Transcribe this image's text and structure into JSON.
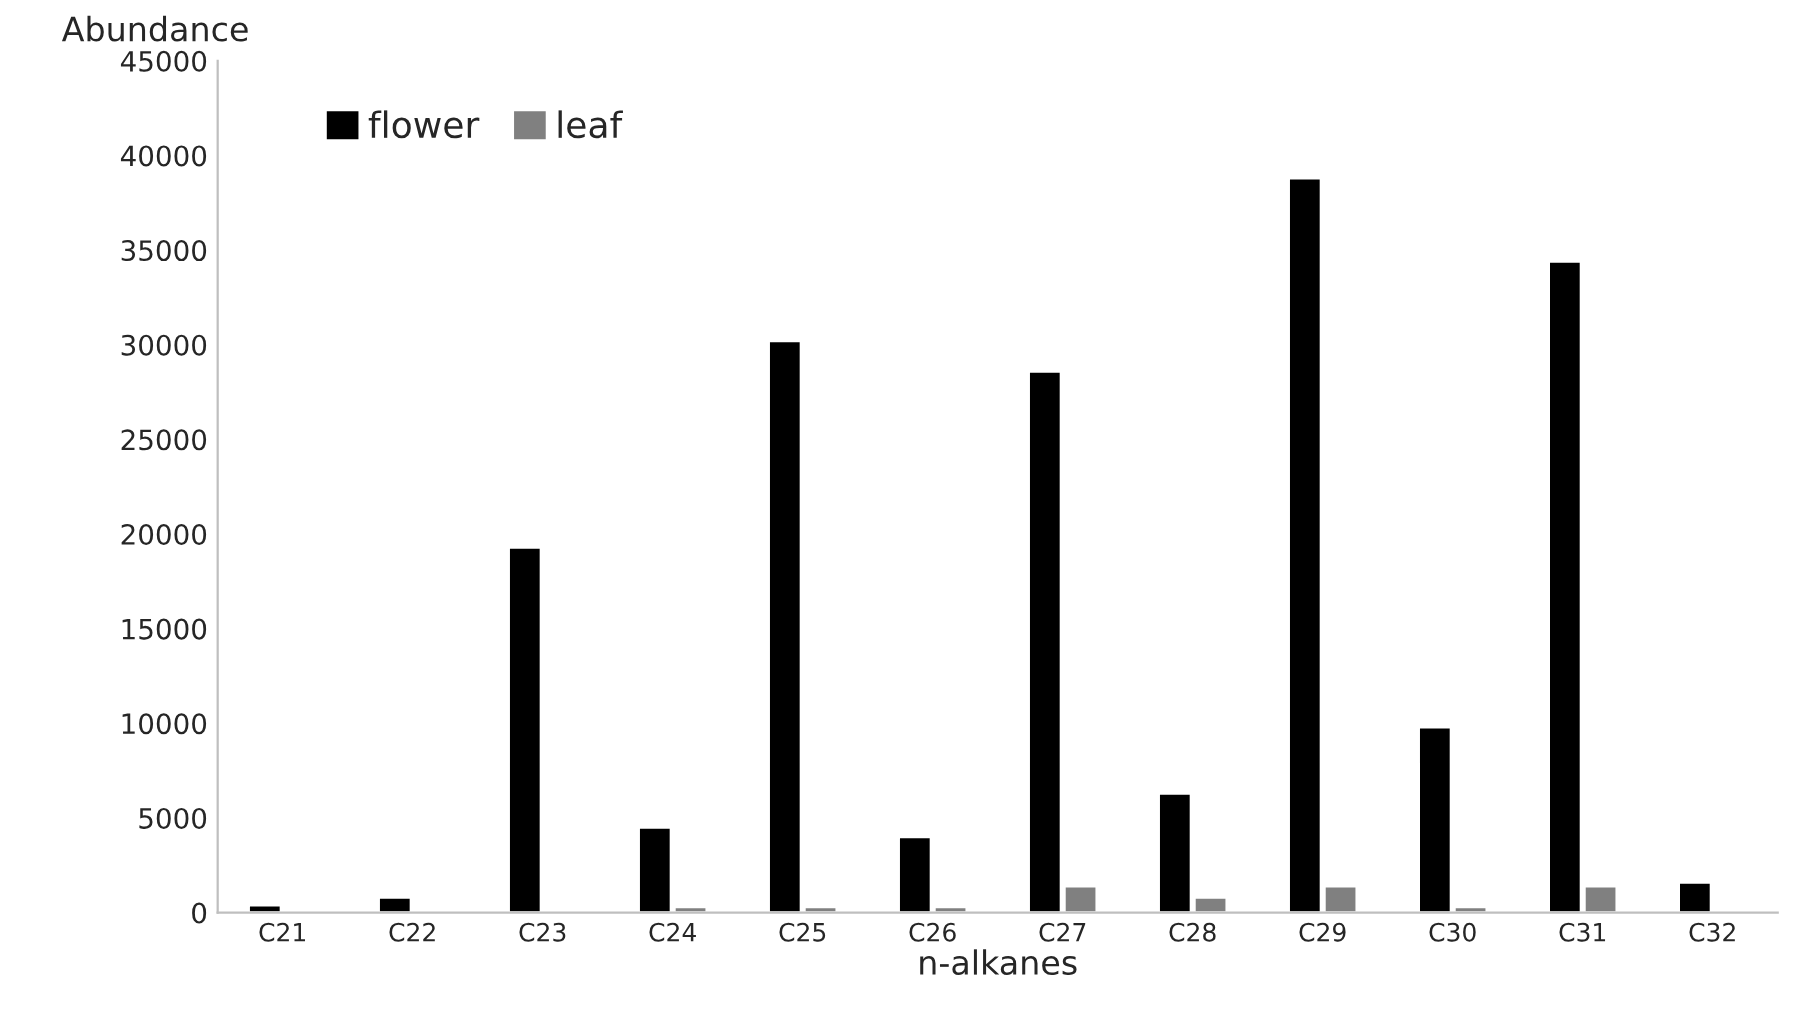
{
  "chart_data": {
    "type": "bar",
    "ylabel": "Abundance",
    "xlabel": "n-alkanes",
    "categories": [
      "C21",
      "C22",
      "C23",
      "C24",
      "C25",
      "C26",
      "C27",
      "C28",
      "C29",
      "C30",
      "C31",
      "C32"
    ],
    "series": [
      {
        "name": "flower",
        "color": "#000000",
        "values": [
          400,
          800,
          19300,
          4500,
          30200,
          4000,
          28600,
          6300,
          38800,
          9800,
          34400,
          1600
        ]
      },
      {
        "name": "leaf",
        "color": "#808080",
        "values": [
          null,
          100,
          null,
          300,
          300,
          300,
          1400,
          800,
          1400,
          300,
          1400,
          null
        ]
      }
    ],
    "ylim": [
      0,
      45000
    ],
    "yticks": [
      0,
      5000,
      10000,
      15000,
      20000,
      25000,
      30000,
      35000,
      40000,
      45000
    ],
    "grid": false,
    "legend": "top left"
  }
}
